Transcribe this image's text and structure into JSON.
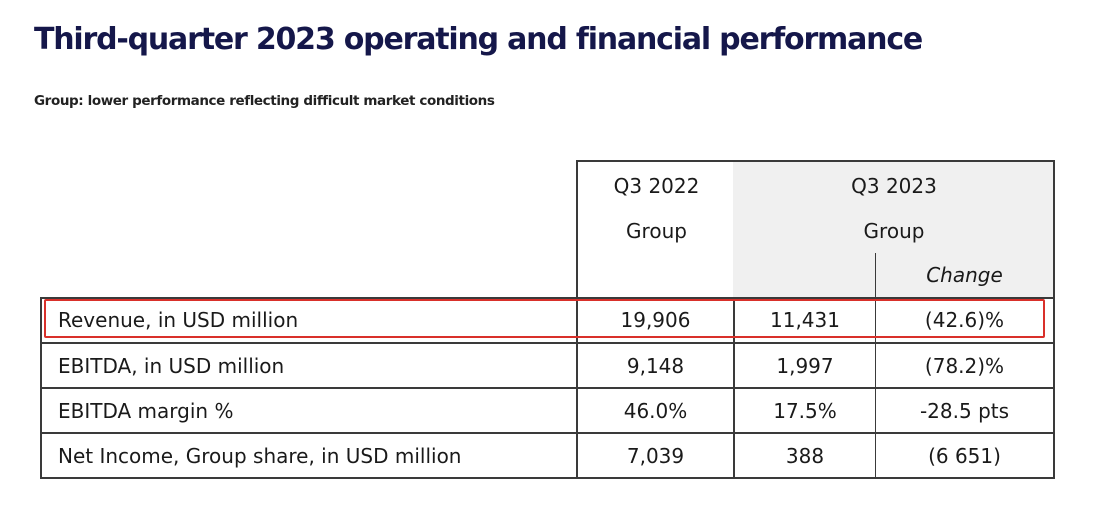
{
  "title": "Third-quarter 2023 operating and financial performance",
  "subtitle": "Group: lower performance reflecting difficult market conditions",
  "table": {
    "col_q3_2022": {
      "period": "Q3 2022",
      "entity": "Group"
    },
    "col_q3_2023": {
      "period": "Q3 2023",
      "entity": "Group",
      "change": "Change"
    },
    "rows": [
      {
        "label": "Revenue, in USD million",
        "q3_2022": "19,906",
        "q3_2023": "11,431",
        "change": "(42.6)%"
      },
      {
        "label": "EBITDA, in USD million",
        "q3_2022": "9,148",
        "q3_2023": "1,997",
        "change": "(78.2)%"
      },
      {
        "label": "EBITDA margin %",
        "q3_2022": "46.0%",
        "q3_2023": "17.5%",
        "change": "-28.5 pts"
      },
      {
        "label": "Net Income, Group share, in USD million",
        "q3_2022": "7,039",
        "q3_2023": "388",
        "change": "(6 651)"
      }
    ]
  },
  "colors": {
    "title": "#15174a",
    "header_shade": "#f0f0f0",
    "highlight_border": "#d9302a"
  }
}
